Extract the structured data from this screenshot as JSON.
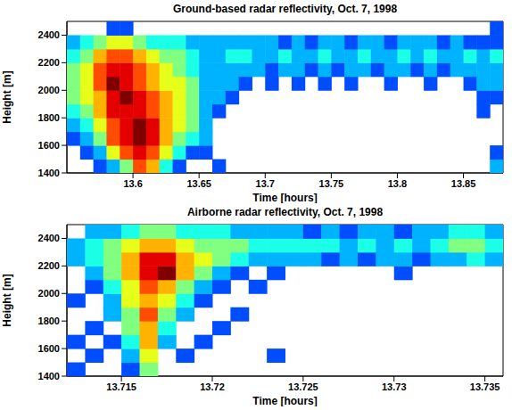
{
  "chart_data": [
    {
      "type": "heatmap",
      "title": "Ground-based radar reflectivity, Oct. 7, 1998",
      "x_label": "Time [hours]",
      "y_label": "Height [m]",
      "xlim": [
        13.55,
        13.88
      ],
      "ylim": [
        1400,
        2500
      ],
      "xticks": [
        13.6,
        13.65,
        13.7,
        13.75,
        13.8,
        13.85
      ],
      "yticks": [
        1400,
        1600,
        1800,
        2000,
        2200,
        2400
      ],
      "value_range": [
        0,
        10
      ],
      "x": [
        13.55,
        13.56,
        13.57,
        13.58,
        13.59,
        13.6,
        13.61,
        13.62,
        13.63,
        13.64,
        13.65,
        13.66,
        13.67,
        13.68,
        13.69,
        13.7,
        13.71,
        13.72,
        13.73,
        13.74,
        13.75,
        13.76,
        13.77,
        13.78,
        13.79,
        13.8,
        13.81,
        13.82,
        13.83,
        13.84,
        13.85,
        13.86,
        13.87
      ],
      "y": [
        1400,
        1500,
        1600,
        1700,
        1800,
        1900,
        2000,
        2100,
        2200,
        2300,
        2400
      ],
      "cells": [
        [
          null,
          null,
          2,
          3,
          4,
          5,
          5,
          5,
          4,
          3,
          null
        ],
        [
          null,
          2,
          3,
          4,
          5,
          6,
          6,
          6,
          5,
          4,
          null
        ],
        [
          2,
          3,
          5,
          6,
          7,
          7,
          8,
          8,
          7,
          5,
          null
        ],
        [
          3,
          6,
          8,
          8,
          9,
          9,
          10,
          9,
          8,
          6,
          2
        ],
        [
          5,
          8,
          9,
          9,
          9,
          10,
          9,
          9,
          8,
          6,
          2
        ],
        [
          8,
          9,
          10,
          10,
          9,
          9,
          8,
          8,
          7,
          5,
          null
        ],
        [
          7,
          8,
          9,
          9,
          8,
          8,
          7,
          7,
          6,
          4,
          null
        ],
        [
          4,
          6,
          7,
          7,
          7,
          7,
          6,
          6,
          5,
          4,
          null
        ],
        [
          2,
          4,
          5,
          6,
          6,
          6,
          6,
          5,
          5,
          4,
          null
        ],
        [
          null,
          2,
          4,
          5,
          5,
          5,
          5,
          4,
          4,
          3,
          null
        ],
        [
          null,
          2,
          3,
          3,
          3,
          3,
          3,
          3,
          3,
          3,
          null
        ],
        [
          2,
          null,
          null,
          null,
          2,
          3,
          3,
          3,
          3,
          3,
          null
        ],
        [
          null,
          null,
          null,
          null,
          null,
          2,
          3,
          3,
          4,
          3,
          null
        ],
        [
          null,
          null,
          null,
          null,
          null,
          null,
          2,
          3,
          4,
          3,
          null
        ],
        [
          null,
          null,
          null,
          null,
          null,
          null,
          null,
          3,
          3,
          3,
          null
        ],
        [
          null,
          null,
          null,
          null,
          null,
          null,
          2,
          2,
          3,
          3,
          null
        ],
        [
          null,
          null,
          null,
          null,
          null,
          null,
          null,
          3,
          4,
          2,
          null
        ],
        [
          null,
          null,
          null,
          null,
          null,
          null,
          2,
          3,
          3,
          3,
          null
        ],
        [
          null,
          null,
          null,
          null,
          null,
          null,
          null,
          2,
          3,
          2,
          null
        ],
        [
          null,
          null,
          null,
          null,
          null,
          null,
          2,
          3,
          4,
          3,
          null
        ],
        [
          null,
          null,
          null,
          null,
          null,
          null,
          null,
          2,
          3,
          3,
          null
        ],
        [
          null,
          null,
          null,
          null,
          null,
          null,
          2,
          3,
          3,
          2,
          null
        ],
        [
          null,
          null,
          null,
          null,
          null,
          null,
          null,
          3,
          4,
          3,
          null
        ],
        [
          null,
          null,
          null,
          null,
          null,
          null,
          null,
          2,
          3,
          3,
          null
        ],
        [
          null,
          null,
          null,
          null,
          null,
          null,
          2,
          3,
          3,
          2,
          null
        ],
        [
          null,
          null,
          null,
          null,
          null,
          null,
          null,
          3,
          4,
          3,
          null
        ],
        [
          null,
          null,
          null,
          null,
          null,
          null,
          null,
          2,
          3,
          3,
          null
        ],
        [
          null,
          null,
          null,
          null,
          null,
          null,
          2,
          3,
          4,
          3,
          null
        ],
        [
          null,
          null,
          null,
          null,
          null,
          null,
          null,
          2,
          3,
          2,
          null
        ],
        [
          null,
          null,
          null,
          null,
          null,
          null,
          null,
          3,
          3,
          3,
          null
        ],
        [
          null,
          null,
          null,
          null,
          null,
          null,
          2,
          3,
          4,
          2,
          null
        ],
        [
          null,
          null,
          null,
          null,
          2,
          2,
          3,
          3,
          3,
          2,
          null
        ],
        [
          3,
          2,
          null,
          null,
          null,
          2,
          3,
          3,
          4,
          2,
          2
        ]
      ]
    },
    {
      "type": "heatmap",
      "title": "Airborne radar reflectivity, Oct. 7, 1998",
      "x_label": "Time [hours]",
      "y_label": "Height [m]",
      "xlim": [
        13.712,
        13.736
      ],
      "ylim": [
        1400,
        2500
      ],
      "xticks": [
        13.715,
        13.72,
        13.725,
        13.73,
        13.735
      ],
      "yticks": [
        1400,
        1600,
        1800,
        2000,
        2200,
        2400
      ],
      "value_range": [
        0,
        10
      ],
      "x": [
        13.712,
        13.713,
        13.714,
        13.715,
        13.716,
        13.717,
        13.718,
        13.719,
        13.72,
        13.721,
        13.722,
        13.723,
        13.724,
        13.725,
        13.726,
        13.727,
        13.728,
        13.729,
        13.73,
        13.731,
        13.732,
        13.733,
        13.734,
        13.735
      ],
      "y": [
        1400,
        1500,
        1600,
        1700,
        1800,
        1900,
        2000,
        2100,
        2200,
        2300,
        2400
      ],
      "cells": [
        [
          2,
          null,
          2,
          null,
          null,
          2,
          null,
          null,
          3,
          3,
          null
        ],
        [
          null,
          2,
          null,
          2,
          null,
          null,
          2,
          3,
          4,
          4,
          3
        ],
        [
          null,
          null,
          2,
          null,
          3,
          3,
          4,
          5,
          5,
          5,
          3
        ],
        [
          2,
          3,
          4,
          5,
          5,
          6,
          6,
          7,
          7,
          6,
          4
        ],
        [
          5,
          6,
          7,
          7,
          8,
          7,
          8,
          9,
          9,
          7,
          5
        ],
        [
          null,
          null,
          3,
          4,
          5,
          6,
          7,
          10,
          9,
          7,
          5
        ],
        [
          null,
          2,
          null,
          null,
          3,
          4,
          5,
          7,
          7,
          6,
          4
        ],
        [
          null,
          null,
          2,
          null,
          null,
          2,
          3,
          5,
          6,
          5,
          4
        ],
        [
          null,
          null,
          null,
          2,
          null,
          null,
          2,
          3,
          5,
          5,
          4
        ],
        [
          null,
          null,
          null,
          null,
          2,
          null,
          null,
          2,
          4,
          5,
          3
        ],
        [
          null,
          null,
          null,
          null,
          null,
          null,
          2,
          null,
          3,
          4,
          3
        ],
        [
          null,
          2,
          null,
          null,
          null,
          null,
          null,
          2,
          3,
          4,
          3
        ],
        [
          null,
          null,
          null,
          null,
          null,
          null,
          null,
          null,
          3,
          4,
          3
        ],
        [
          null,
          null,
          null,
          null,
          null,
          null,
          null,
          null,
          3,
          4,
          2
        ],
        [
          null,
          null,
          null,
          null,
          null,
          null,
          null,
          null,
          2,
          4,
          3
        ],
        [
          null,
          null,
          null,
          null,
          null,
          null,
          null,
          null,
          3,
          3,
          2
        ],
        [
          null,
          null,
          null,
          null,
          null,
          null,
          null,
          null,
          2,
          4,
          3
        ],
        [
          null,
          null,
          null,
          null,
          null,
          null,
          null,
          null,
          3,
          3,
          3
        ],
        [
          null,
          null,
          null,
          null,
          null,
          null,
          null,
          2,
          3,
          4,
          2
        ],
        [
          null,
          null,
          null,
          null,
          null,
          null,
          null,
          null,
          2,
          3,
          3
        ],
        [
          null,
          null,
          null,
          null,
          null,
          null,
          null,
          null,
          3,
          4,
          3
        ],
        [
          null,
          null,
          null,
          null,
          null,
          null,
          null,
          null,
          3,
          5,
          4
        ],
        [
          null,
          null,
          null,
          null,
          null,
          null,
          null,
          null,
          4,
          5,
          4
        ],
        [
          null,
          null,
          null,
          null,
          null,
          null,
          null,
          null,
          3,
          4,
          3
        ]
      ]
    }
  ]
}
